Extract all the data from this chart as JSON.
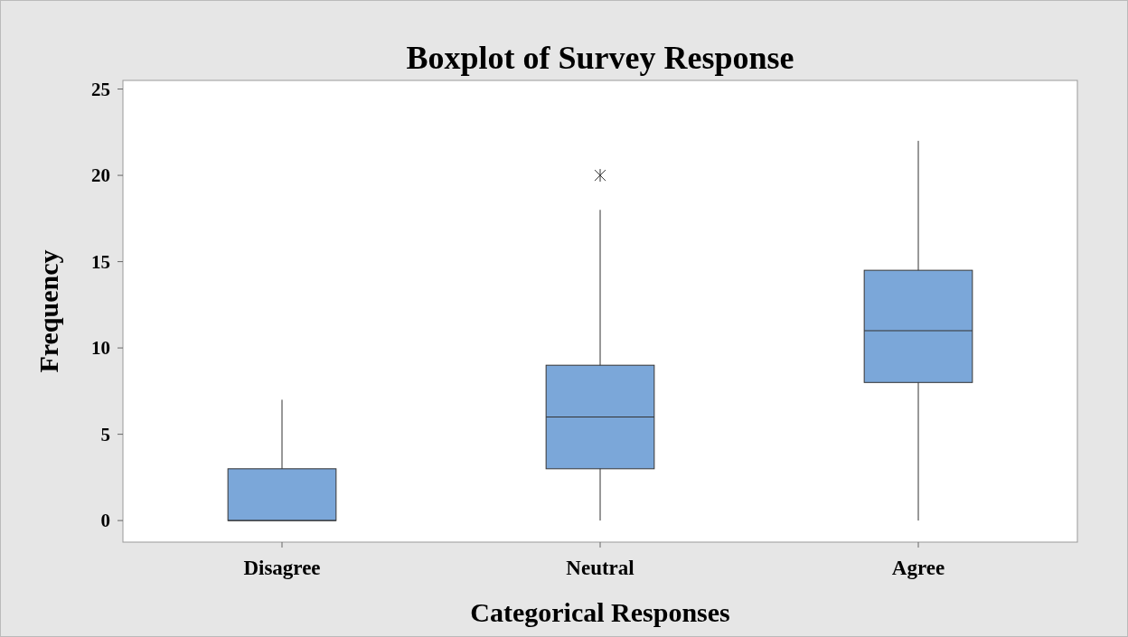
{
  "chart_data": {
    "type": "box",
    "title": "Boxplot of Survey Response",
    "xlabel": "Categorical Responses",
    "ylabel": "Frequency",
    "categories": [
      "Disagree",
      "Neutral",
      "Agree"
    ],
    "color": "#7ba7d9",
    "boxes": [
      {
        "low": 0,
        "q1": 0,
        "median": 0,
        "q3": 3,
        "high": 7
      },
      {
        "low": 0,
        "q1": 3,
        "median": 6,
        "q3": 9,
        "high": 18,
        "outliers": [
          20
        ]
      },
      {
        "low": 0,
        "q1": 8,
        "median": 11,
        "q3": 14.5,
        "high": 22
      }
    ],
    "ylim": [
      -1.25,
      25.5
    ],
    "yticks": [
      0,
      5,
      10,
      15,
      20,
      25
    ],
    "grid": false
  }
}
